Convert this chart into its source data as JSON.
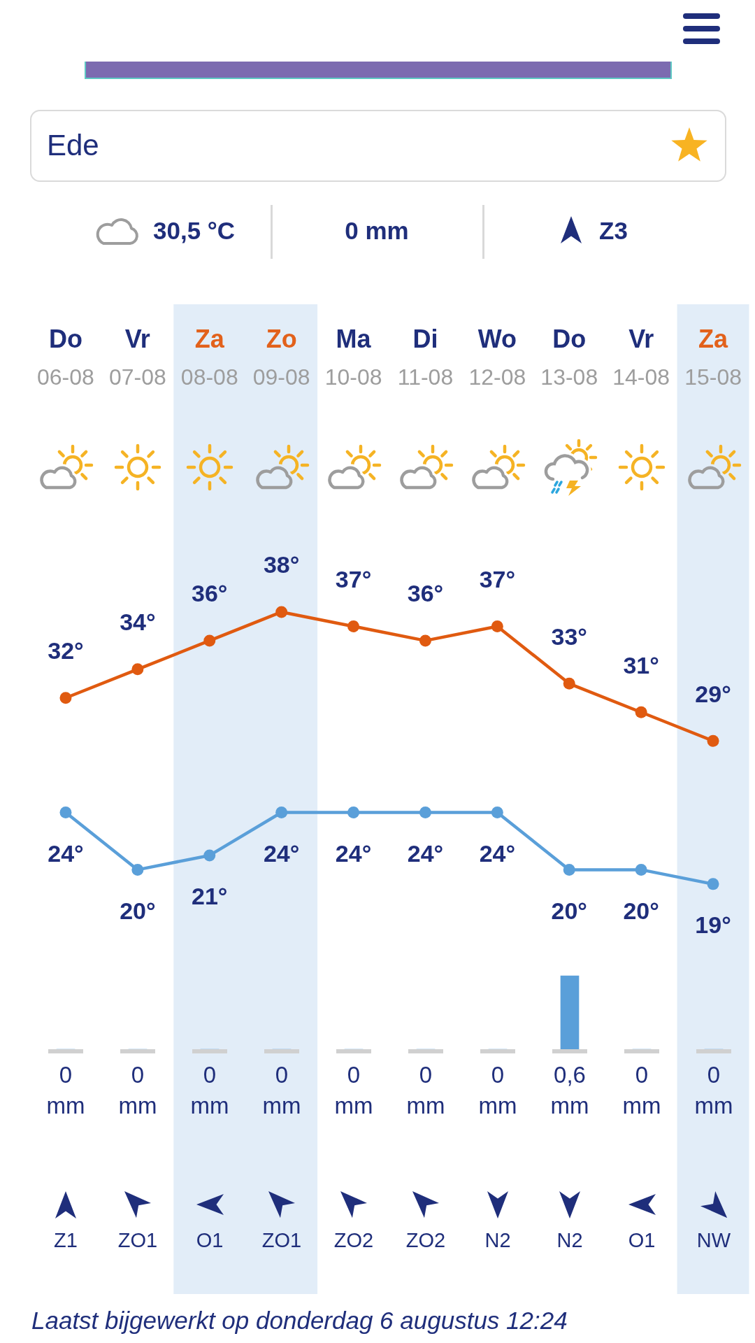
{
  "chart_data": [
    {
      "type": "other",
      "annotations": [
        "Ede",
        "30,5 °C",
        "0 mm",
        "Z3"
      ]
    },
    {
      "type": "line",
      "categories": [
        "Do 06-08",
        "Vr 07-08",
        "Za 08-08",
        "Zo 09-08",
        "Ma 10-08",
        "Di 11-08",
        "Wo 12-08",
        "Do 13-08",
        "Vr 14-08",
        "Za 15-08"
      ],
      "series": [
        {
          "color": "#e05a10",
          "values": [
            32,
            34,
            36,
            38,
            37,
            36,
            37,
            33,
            31,
            29
          ],
          "value_labels": [
            "32°",
            "34°",
            "36°",
            "38°",
            "37°",
            "36°",
            "37°",
            "33°",
            "31°",
            "29°"
          ]
        },
        {
          "color": "#5a9fd9",
          "values": [
            24,
            20,
            21,
            24,
            24,
            24,
            24,
            20,
            20,
            19
          ],
          "value_labels": [
            "24°",
            "20°",
            "21°",
            "24°",
            "24°",
            "24°",
            "24°",
            "20°",
            "20°",
            "19°"
          ]
        }
      ],
      "marker": "circle",
      "tick_labels": "x",
      "bands": [
        {
          "axis": "x",
          "from": "Za 08-08",
          "to": "Zo 09-08",
          "color": "#e2edf8"
        },
        {
          "axis": "x",
          "from": "Za 15-08",
          "to": "Za 15-08",
          "color": "#e2edf8"
        }
      ],
      "annotations": [
        "Laatst bijgewerkt op donderdag 6 augustus 12:24"
      ]
    },
    {
      "type": "bar",
      "categories": [
        null,
        null,
        null,
        null,
        null,
        null,
        null,
        null,
        null,
        null
      ],
      "values": [
        0,
        0,
        0,
        0,
        0,
        0,
        0,
        0.6,
        0,
        0
      ],
      "color": "#5a9fd9",
      "value_labels": [
        "0 mm",
        "0 mm",
        "0 mm",
        "0 mm",
        "0 mm",
        "0 mm",
        "0 mm",
        "0,6 mm",
        "0 mm",
        "0 mm"
      ],
      "tick_labels": false
    },
    {
      "type": "other",
      "annotations": [
        "Z1",
        "ZO1",
        "O1",
        "ZO1",
        "ZO2",
        "ZO2",
        "N2",
        "N2",
        "O1",
        "NW"
      ]
    }
  ]
}
